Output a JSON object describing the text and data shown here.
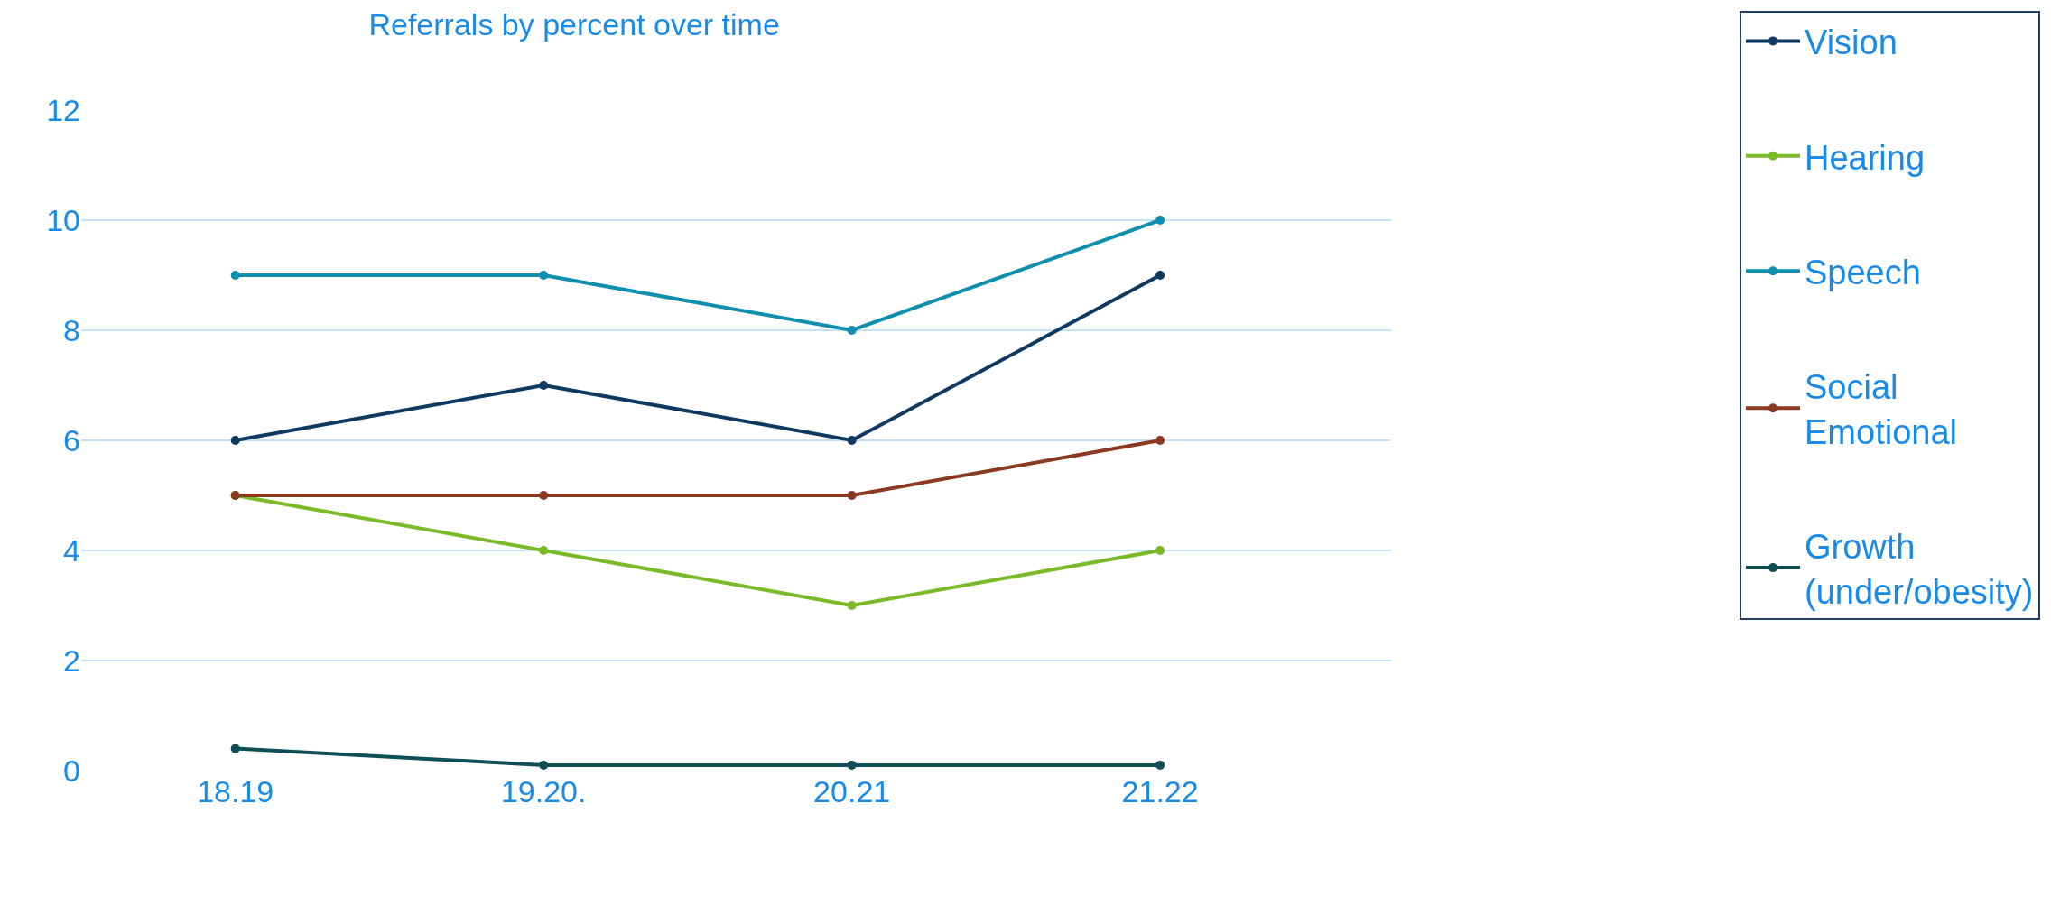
{
  "chart_data": {
    "type": "line",
    "title": "Referrals by percent over time",
    "categories": [
      "18.19",
      "19.20.",
      "20.21",
      "21.22"
    ],
    "series": [
      {
        "name": "Vision",
        "color": "#0e3a62",
        "values": [
          6,
          7,
          6,
          9
        ]
      },
      {
        "name": "Hearing",
        "color": "#7aba28",
        "values": [
          5,
          4,
          3,
          4
        ]
      },
      {
        "name": "Speech",
        "color": "#0e8fae",
        "values": [
          9,
          9,
          8,
          10
        ]
      },
      {
        "name": "Social Emotional",
        "color": "#8b3a22",
        "values": [
          5,
          5,
          5,
          6
        ]
      },
      {
        "name": "Growth (under/obesity)",
        "color": "#0e4f55",
        "values": [
          0.4,
          0.1,
          0.1,
          0.1
        ]
      }
    ],
    "ylim": [
      0,
      12
    ],
    "yticks": [
      0,
      2,
      4,
      6,
      8,
      10,
      12
    ],
    "grid": "y",
    "legend": "right",
    "marker": "circle",
    "line_style": "solid"
  }
}
